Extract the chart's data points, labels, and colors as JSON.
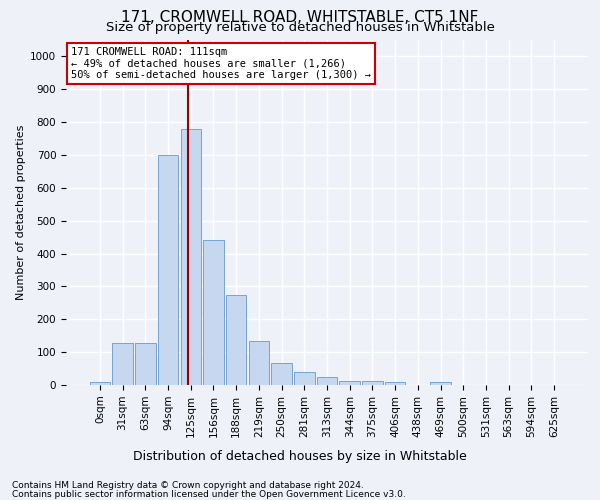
{
  "title1": "171, CROMWELL ROAD, WHITSTABLE, CT5 1NF",
  "title2": "Size of property relative to detached houses in Whitstable",
  "xlabel": "Distribution of detached houses by size in Whitstable",
  "ylabel": "Number of detached properties",
  "bar_labels": [
    "0sqm",
    "31sqm",
    "63sqm",
    "94sqm",
    "125sqm",
    "156sqm",
    "188sqm",
    "219sqm",
    "250sqm",
    "281sqm",
    "313sqm",
    "344sqm",
    "375sqm",
    "406sqm",
    "438sqm",
    "469sqm",
    "500sqm",
    "531sqm",
    "563sqm",
    "594sqm",
    "625sqm"
  ],
  "bar_values": [
    8,
    128,
    128,
    700,
    778,
    440,
    275,
    133,
    68,
    40,
    25,
    13,
    12,
    8,
    0,
    10,
    0,
    0,
    0,
    0,
    0
  ],
  "bar_color": "#c5d8f0",
  "bar_edge_color": "#6699cc",
  "vline_x": 3.87,
  "vline_color": "#990000",
  "annotation_text": "171 CROMWELL ROAD: 111sqm\n← 49% of detached houses are smaller (1,266)\n50% of semi-detached houses are larger (1,300) →",
  "annotation_box_color": "#ffffff",
  "annotation_box_edge": "#cc0000",
  "ylim": [
    0,
    1050
  ],
  "yticks": [
    0,
    100,
    200,
    300,
    400,
    500,
    600,
    700,
    800,
    900,
    1000
  ],
  "footer1": "Contains HM Land Registry data © Crown copyright and database right 2024.",
  "footer2": "Contains public sector information licensed under the Open Government Licence v3.0.",
  "background_color": "#eef2f8",
  "plot_bg_color": "#eef2f8",
  "grid_color": "#ffffff",
  "title1_fontsize": 11,
  "title2_fontsize": 9.5,
  "xlabel_fontsize": 9,
  "ylabel_fontsize": 8,
  "tick_fontsize": 7.5,
  "annot_fontsize": 7.5,
  "footer_fontsize": 6.5
}
